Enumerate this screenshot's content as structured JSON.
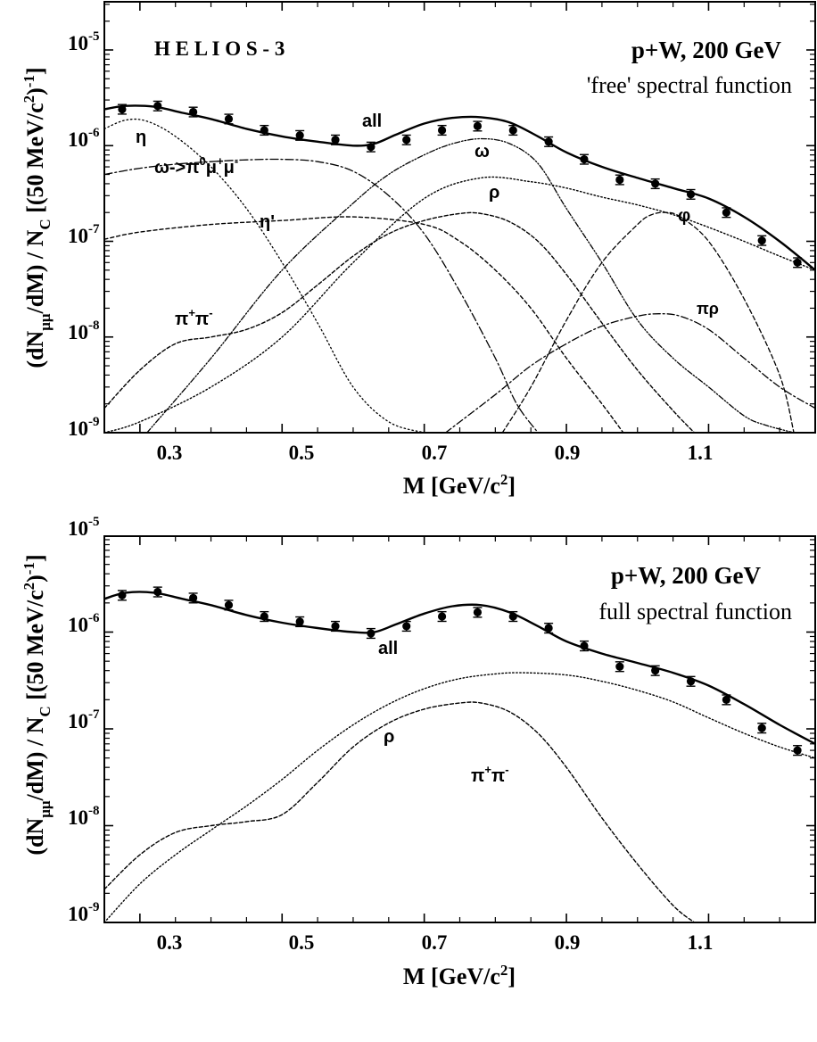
{
  "chart_data": [
    {
      "type": "line",
      "title": "HELIOS-3",
      "annotation_line1": "p+W, 200 GeV",
      "annotation_line2": "'free' spectral function",
      "xlabel": "M [GeV/c²]",
      "ylabel": "(dNμμ/dM) / NC [(50 MeV/c²)⁻¹]",
      "xlim": [
        0.25,
        1.25
      ],
      "ylim": [
        1e-09,
        3e-05
      ],
      "yscale": "log",
      "xticks": [
        "0.3",
        "0.5",
        "0.7",
        "0.9",
        "1.1"
      ],
      "yticks": [
        "10-9",
        "10-8",
        "10-7",
        "10-6",
        "10-5"
      ],
      "data_points": {
        "x": [
          0.275,
          0.325,
          0.375,
          0.425,
          0.475,
          0.525,
          0.575,
          0.625,
          0.675,
          0.725,
          0.775,
          0.825,
          0.875,
          0.925,
          0.975,
          1.025,
          1.075,
          1.125,
          1.175,
          1.225
        ],
        "y": [
          2.4e-06,
          2.6e-06,
          2.25e-06,
          1.9e-06,
          1.45e-06,
          1.28e-06,
          1.15e-06,
          9.7e-07,
          1.15e-06,
          1.45e-06,
          1.6e-06,
          1.45e-06,
          1.1e-06,
          7.2e-07,
          4.4e-07,
          4e-07,
          3.1e-07,
          2e-07,
          1.02e-07,
          6e-08
        ]
      },
      "series": [
        {
          "name": "all",
          "x": [
            0.25,
            0.28,
            0.32,
            0.36,
            0.4,
            0.45,
            0.5,
            0.55,
            0.6,
            0.63,
            0.66,
            0.7,
            0.74,
            0.78,
            0.82,
            0.86,
            0.9,
            0.95,
            1.0,
            1.05,
            1.1,
            1.15,
            1.2,
            1.25
          ],
          "y": [
            2.4e-06,
            2.6e-06,
            2.55e-06,
            2.2e-06,
            1.9e-06,
            1.5e-06,
            1.25e-06,
            1.1e-06,
            1e-06,
            1.05e-06,
            1.3e-06,
            1.7e-06,
            1.95e-06,
            1.98e-06,
            1.75e-06,
            1.25e-06,
            8.5e-07,
            6e-07,
            4.6e-07,
            3.6e-07,
            2.8e-07,
            1.8e-07,
            1e-07,
            5e-08
          ]
        },
        {
          "name": "η",
          "x": [
            0.25,
            0.28,
            0.31,
            0.35,
            0.4,
            0.45,
            0.5,
            0.55,
            0.6,
            0.65,
            0.7
          ],
          "y": [
            1.5e-06,
            1.85e-06,
            1.8e-06,
            1.25e-06,
            6e-07,
            2.2e-07,
            6e-08,
            1.4e-08,
            3e-09,
            1.3e-09,
            1e-09
          ]
        },
        {
          "name": "ω->π⁰μ⁺μ⁻",
          "x": [
            0.25,
            0.3,
            0.35,
            0.4,
            0.45,
            0.5,
            0.55,
            0.6,
            0.65,
            0.7,
            0.75,
            0.8,
            0.83,
            0.86
          ],
          "y": [
            5e-07,
            5.8e-07,
            6.4e-07,
            6.8e-07,
            7.1e-07,
            7.2e-07,
            6.8e-07,
            5.4e-07,
            3e-07,
            1.2e-07,
            3e-08,
            6e-09,
            2e-09,
            1e-09
          ]
        },
        {
          "name": "η'",
          "x": [
            0.25,
            0.3,
            0.4,
            0.5,
            0.6,
            0.7,
            0.75,
            0.8,
            0.85,
            0.9,
            0.95,
            0.98
          ],
          "y": [
            1.05e-07,
            1.25e-07,
            1.5e-07,
            1.65e-07,
            1.8e-07,
            1.5e-07,
            1e-07,
            5e-08,
            2e-08,
            6e-09,
            2e-09,
            1e-09
          ]
        },
        {
          "name": "ω",
          "x": [
            0.31,
            0.4,
            0.5,
            0.6,
            0.65,
            0.7,
            0.74,
            0.78,
            0.82,
            0.86,
            0.9,
            0.95,
            1.0,
            1.05,
            1.1,
            1.15,
            1.18,
            1.22
          ],
          "y": [
            1e-09,
            6e-09,
            5e-08,
            2.5e-07,
            5e-07,
            8e-07,
            1.05e-06,
            1.18e-06,
            1.05e-06,
            6.5e-07,
            2.2e-07,
            6e-08,
            1.5e-08,
            6e-09,
            3e-09,
            1.5e-09,
            1.2e-09,
            1e-09
          ]
        },
        {
          "name": "ρ",
          "x": [
            0.25,
            0.3,
            0.4,
            0.5,
            0.6,
            0.7,
            0.78,
            0.85,
            0.9,
            0.95,
            1.0,
            1.05,
            1.1,
            1.15,
            1.2,
            1.25
          ],
          "y": [
            1e-09,
            1.3e-09,
            3e-09,
            1e-08,
            6e-08,
            2.8e-07,
            4.6e-07,
            4.2e-07,
            3.6e-07,
            2.9e-07,
            2.4e-07,
            1.9e-07,
            1.4e-07,
            1e-07,
            7e-08,
            5e-08
          ]
        },
        {
          "name": "π⁺π⁻",
          "x": [
            0.25,
            0.3,
            0.35,
            0.4,
            0.45,
            0.5,
            0.55,
            0.6,
            0.65,
            0.7,
            0.75,
            0.78,
            0.82,
            0.86,
            0.9,
            0.95,
            1.0,
            1.05,
            1.08
          ],
          "y": [
            1.8e-09,
            4.5e-09,
            8.5e-09,
            1e-08,
            1.2e-08,
            1.8e-08,
            3.5e-08,
            7e-08,
            1.2e-07,
            1.65e-07,
            1.95e-07,
            1.95e-07,
            1.6e-07,
            1e-07,
            4.5e-08,
            1.4e-08,
            4.5e-09,
            1.7e-09,
            1e-09
          ]
        },
        {
          "name": "φ",
          "x": [
            0.81,
            0.85,
            0.9,
            0.95,
            1.0,
            1.02,
            1.04,
            1.06,
            1.1,
            1.15,
            1.2,
            1.22
          ],
          "y": [
            1e-09,
            3e-09,
            1.5e-08,
            6e-08,
            1.5e-07,
            1.9e-07,
            2e-07,
            1.8e-07,
            1e-07,
            2.5e-08,
            4e-09,
            1e-09
          ]
        },
        {
          "name": "πρ",
          "x": [
            0.73,
            0.8,
            0.85,
            0.9,
            0.95,
            1.0,
            1.03,
            1.06,
            1.1,
            1.15,
            1.2,
            1.25
          ],
          "y": [
            1e-09,
            2.5e-09,
            5e-09,
            8.5e-09,
            1.3e-08,
            1.65e-08,
            1.75e-08,
            1.65e-08,
            1.2e-08,
            6e-09,
            3e-09,
            1.8e-09
          ]
        }
      ],
      "labels": [
        "H E L I O S - 3",
        "all",
        "η",
        "ω",
        "ω->π",
        "0",
        "μ",
        "+",
        "μ",
        "-",
        "ρ",
        "η'",
        "φ",
        "π",
        "+",
        "π",
        "-",
        "πρ"
      ]
    },
    {
      "type": "line",
      "annotation_line1": "p+W, 200 GeV",
      "annotation_line2": "full spectral function",
      "xlabel": "M [GeV/c²]",
      "ylabel": "(dNμμ/dM) / NC [(50 MeV/c²)⁻¹]",
      "xlim": [
        0.25,
        1.25
      ],
      "ylim": [
        1e-09,
        3e-05
      ],
      "yscale": "log",
      "xticks": [
        "0.3",
        "0.5",
        "0.7",
        "0.9",
        "1.1"
      ],
      "yticks": [
        "10-9",
        "10-8",
        "10-7",
        "10-6",
        "10-5"
      ],
      "data_points": {
        "x": [
          0.275,
          0.325,
          0.375,
          0.425,
          0.475,
          0.525,
          0.575,
          0.625,
          0.675,
          0.725,
          0.775,
          0.825,
          0.875,
          0.925,
          0.975,
          1.025,
          1.075,
          1.125,
          1.175,
          1.225
        ],
        "y": [
          2.4e-06,
          2.6e-06,
          2.25e-06,
          1.9e-06,
          1.45e-06,
          1.28e-06,
          1.15e-06,
          9.7e-07,
          1.15e-06,
          1.45e-06,
          1.6e-06,
          1.45e-06,
          1.1e-06,
          7.2e-07,
          4.4e-07,
          4e-07,
          3.1e-07,
          2e-07,
          1.02e-07,
          6e-08
        ]
      },
      "series": [
        {
          "name": "all",
          "x": [
            0.25,
            0.28,
            0.32,
            0.36,
            0.4,
            0.45,
            0.5,
            0.55,
            0.6,
            0.63,
            0.66,
            0.7,
            0.74,
            0.78,
            0.82,
            0.86,
            0.9,
            0.95,
            1.0,
            1.05,
            1.1,
            1.15,
            1.2,
            1.25
          ],
          "y": [
            2.2e-06,
            2.55e-06,
            2.55e-06,
            2.2e-06,
            1.9e-06,
            1.5e-06,
            1.25e-06,
            1.1e-06,
            1e-06,
            1e-06,
            1.2e-06,
            1.55e-06,
            1.85e-06,
            1.9e-06,
            1.6e-06,
            1.15e-06,
            8e-07,
            6e-07,
            4.8e-07,
            3.8e-07,
            2.8e-07,
            1.8e-07,
            1.1e-07,
            7e-08
          ]
        },
        {
          "name": "ρ",
          "x": [
            0.25,
            0.3,
            0.35,
            0.4,
            0.45,
            0.5,
            0.55,
            0.6,
            0.65,
            0.7,
            0.75,
            0.8,
            0.84,
            0.9,
            0.95,
            1.0,
            1.05,
            1.1,
            1.15,
            1.2,
            1.25
          ],
          "y": [
            1e-09,
            2.5e-09,
            5e-09,
            9e-09,
            1.6e-08,
            3e-08,
            6e-08,
            1.1e-07,
            1.8e-07,
            2.6e-07,
            3.3e-07,
            3.7e-07,
            3.8e-07,
            3.6e-07,
            3.1e-07,
            2.5e-07,
            1.9e-07,
            1.3e-07,
            9e-08,
            6.5e-08,
            5e-08
          ]
        },
        {
          "name": "π⁺π⁻",
          "x": [
            0.25,
            0.3,
            0.35,
            0.4,
            0.45,
            0.5,
            0.55,
            0.6,
            0.65,
            0.7,
            0.75,
            0.78,
            0.82,
            0.86,
            0.9,
            0.95,
            1.0,
            1.05,
            1.08
          ],
          "y": [
            2.2e-09,
            5e-09,
            8.5e-09,
            1e-08,
            1.1e-08,
            1.3e-08,
            2.8e-08,
            6.5e-08,
            1.15e-07,
            1.6e-07,
            1.85e-07,
            1.85e-07,
            1.5e-07,
            9e-08,
            4e-08,
            1.2e-08,
            4e-09,
            1.5e-09,
            1e-09
          ]
        }
      ],
      "labels": [
        "all",
        "ρ",
        "π",
        "+",
        "π",
        "-"
      ]
    }
  ],
  "curve_styles": {
    "all": {
      "dash": "",
      "width": 2.4
    },
    "η": {
      "dash": "1.5 3",
      "width": 1.3
    },
    "ω->π⁰μ⁺μ⁻": {
      "dash": "9 3 2 3",
      "width": 1.3
    },
    "η'": {
      "dash": "4 3",
      "width": 1.4
    },
    "ω": {
      "dash": "6 2 1.5 2 1.5 2",
      "width": 1.3
    },
    "ρ": {
      "dash": "1.5 2.5",
      "width": 1.4
    },
    "π⁺π⁻": {
      "dash": "4 2.5",
      "width": 1.4
    },
    "φ": {
      "dash": "5 3",
      "width": 1.3
    },
    "πρ": {
      "dash": "8 3 2 3",
      "width": 1.3
    }
  }
}
